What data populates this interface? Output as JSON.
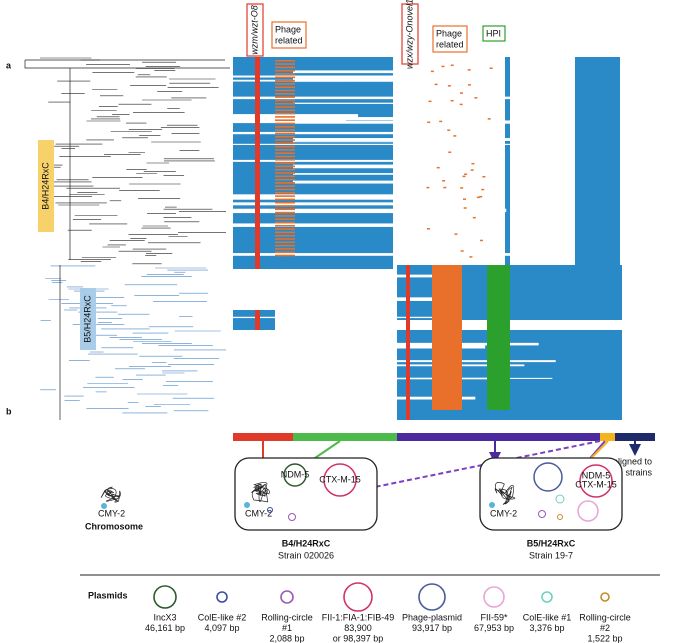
{
  "panels": {
    "a": "a",
    "b": "b"
  },
  "heatmap_labels": {
    "wzm": "wzm/wzt-O8",
    "phage1": [
      "Phage",
      "related"
    ],
    "wzx": "wzx/wzy-Onovel1",
    "phage2": [
      "Phage",
      "related"
    ],
    "hpi": "HPI"
  },
  "clades": {
    "b4": "B4/H24RxC",
    "b5": "B5/H24RxC"
  },
  "not_aligned": [
    "Not aligned to",
    "reference strains"
  ],
  "chromosome": "Chromosome",
  "cells": [
    {
      "genes": [
        "NDM-5",
        "CTX-M-15",
        "CMY-2"
      ],
      "name": "B4/H24RxC",
      "strain": "Strain 020026"
    },
    {
      "genes": [
        "NDM-5",
        "CTX-M-15",
        "CMY-2"
      ],
      "name": "B5/H24RxC",
      "strain": "Strain 19-7"
    }
  ],
  "plasmids_title": "Plasmids",
  "plasmids": [
    {
      "lines": [
        "IncX3",
        "46,161 bp"
      ]
    },
    {
      "lines": [
        "ColE-like #2",
        "4,097 bp"
      ]
    },
    {
      "lines": [
        "Rolling-circle",
        "#1",
        "2,088 bp"
      ]
    },
    {
      "lines": [
        "FII-1:FIA-1:FIB-49",
        "83,900",
        "or 98,397 bp"
      ]
    },
    {
      "lines": [
        "Phage-plasmid",
        "93,917 bp"
      ]
    },
    {
      "lines": [
        "FII-59*",
        "67,953 bp"
      ]
    },
    {
      "lines": [
        "ColE-like #1",
        "3,376 bp"
      ]
    },
    {
      "lines": [
        "Rolling-circle",
        "#2",
        "1,522 bp"
      ]
    }
  ]
}
